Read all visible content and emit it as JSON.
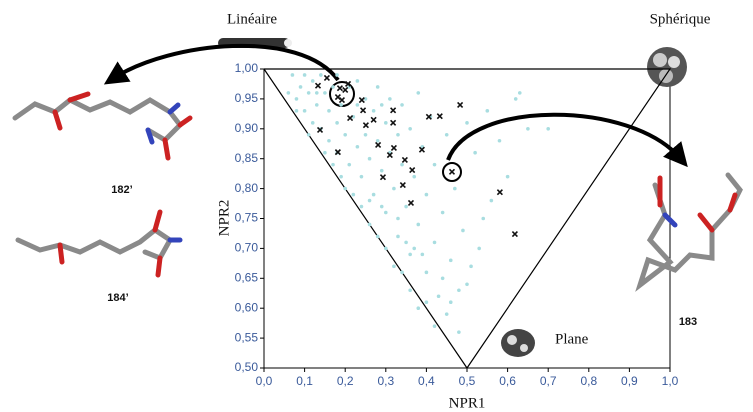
{
  "chart_data": {
    "type": "scatter",
    "x_label": "NPR1",
    "y_label": "NPR2",
    "xlim": [
      0,
      1
    ],
    "ylim": [
      0.5,
      1
    ],
    "xticks": [
      {
        "value": 0,
        "label": "0,0"
      },
      {
        "value": 0.1,
        "label": "0,1"
      },
      {
        "value": 0.2,
        "label": "0,2"
      },
      {
        "value": 0.3,
        "label": "0,3"
      },
      {
        "value": 0.4,
        "label": "0,4"
      },
      {
        "value": 0.5,
        "label": "0,5"
      },
      {
        "value": 0.6,
        "label": "0,6"
      },
      {
        "value": 0.7,
        "label": "0,7"
      },
      {
        "value": 0.8,
        "label": "0,8"
      },
      {
        "value": 0.9,
        "label": "0,9"
      },
      {
        "value": 1,
        "label": "1,0"
      }
    ],
    "yticks": [
      {
        "value": 0.5,
        "label": "0,50"
      },
      {
        "value": 0.55,
        "label": "0,55"
      },
      {
        "value": 0.6,
        "label": "0,60"
      },
      {
        "value": 0.65,
        "label": "0,65"
      },
      {
        "value": 0.7,
        "label": "0,70"
      },
      {
        "value": 0.75,
        "label": "0,75"
      },
      {
        "value": 0.8,
        "label": "0,80"
      },
      {
        "value": 0.85,
        "label": "0,85"
      },
      {
        "value": 0.9,
        "label": "0,90"
      },
      {
        "value": 0.95,
        "label": "0,95"
      },
      {
        "value": 1,
        "label": "1,00"
      }
    ],
    "triangle": {
      "x": [
        0,
        0.5,
        1,
        0
      ],
      "y": [
        1,
        0.5,
        1,
        1
      ]
    },
    "corner_labels": [
      "Linéaire",
      "Sphérique",
      "Plane"
    ],
    "compound_labels": [
      "182’",
      "184’",
      "183"
    ],
    "series": [
      {
        "color": "#a8dde0",
        "marker": "dot",
        "x": [
          0.06,
          0.08,
          0.09,
          0.1,
          0.11,
          0.12,
          0.12,
          0.13,
          0.14,
          0.15,
          0.16,
          0.16,
          0.17,
          0.18,
          0.18,
          0.19,
          0.2,
          0.21,
          0.21,
          0.22,
          0.23,
          0.23,
          0.24,
          0.25,
          0.25,
          0.26,
          0.27,
          0.27,
          0.28,
          0.28,
          0.29,
          0.3,
          0.3,
          0.31,
          0.31,
          0.32,
          0.33,
          0.33,
          0.34,
          0.34,
          0.35,
          0.36,
          0.36,
          0.37,
          0.38,
          0.38,
          0.39,
          0.4,
          0.4,
          0.41,
          0.42,
          0.42,
          0.43,
          0.44,
          0.45,
          0.45,
          0.46,
          0.47,
          0.48,
          0.49,
          0.5,
          0.5,
          0.52,
          0.53,
          0.55,
          0.56,
          0.58,
          0.6,
          0.62,
          0.63,
          0.65,
          0.7,
          0.22,
          0.26,
          0.28,
          0.3,
          0.32,
          0.34,
          0.36,
          0.38,
          0.4,
          0.42,
          0.07,
          0.1,
          0.14,
          0.18,
          0.15,
          0.17,
          0.19,
          0.2,
          0.24,
          0.26,
          0.29,
          0.33,
          0.35,
          0.37,
          0.39,
          0.44,
          0.46,
          0.48,
          0.51,
          0.54,
          0.29,
          0.23,
          0.13,
          0.08,
          0.11
        ],
        "values": [
          0.96,
          0.95,
          0.97,
          0.93,
          0.96,
          0.98,
          0.91,
          0.94,
          0.9,
          0.96,
          0.88,
          0.93,
          0.97,
          0.91,
          0.86,
          0.94,
          0.89,
          0.97,
          0.84,
          0.92,
          0.87,
          0.98,
          0.82,
          0.95,
          0.89,
          0.85,
          0.93,
          0.79,
          0.97,
          0.88,
          0.83,
          0.91,
          0.76,
          0.95,
          0.86,
          0.8,
          0.89,
          0.72,
          0.94,
          0.84,
          0.77,
          0.9,
          0.69,
          0.82,
          0.96,
          0.74,
          0.87,
          0.66,
          0.79,
          0.92,
          0.71,
          0.84,
          0.62,
          0.76,
          0.89,
          0.59,
          0.68,
          0.8,
          0.56,
          0.73,
          0.91,
          0.64,
          0.86,
          0.7,
          0.93,
          0.78,
          0.88,
          0.82,
          0.95,
          0.96,
          0.9,
          0.9,
          0.79,
          0.74,
          0.72,
          0.7,
          0.67,
          0.66,
          0.63,
          0.6,
          0.61,
          0.57,
          0.99,
          0.99,
          0.99,
          0.99,
          0.86,
          0.84,
          0.82,
          0.8,
          0.77,
          0.78,
          0.77,
          0.75,
          0.71,
          0.7,
          0.69,
          0.65,
          0.61,
          0.63,
          0.67,
          0.75,
          0.94,
          0.94,
          0.96,
          0.93,
          0.89
        ]
      },
      {
        "color": "#111111",
        "marker": "x",
        "x": [
          0.133,
          0.155,
          0.187,
          0.2,
          0.182,
          0.192,
          0.207,
          0.241,
          0.244,
          0.27,
          0.212,
          0.251,
          0.138,
          0.182,
          0.318,
          0.318,
          0.406,
          0.433,
          0.483,
          0.281,
          0.31,
          0.32,
          0.347,
          0.389,
          0.365,
          0.342,
          0.293,
          0.362,
          0.463,
          0.581,
          0.618
        ],
        "values": [
          0.972,
          0.985,
          0.968,
          0.965,
          0.953,
          0.948,
          0.975,
          0.948,
          0.931,
          0.915,
          0.918,
          0.906,
          0.898,
          0.861,
          0.931,
          0.91,
          0.92,
          0.921,
          0.94,
          0.873,
          0.856,
          0.868,
          0.848,
          0.865,
          0.831,
          0.806,
          0.819,
          0.776,
          0.828,
          0.794,
          0.724
        ]
      }
    ]
  }
}
